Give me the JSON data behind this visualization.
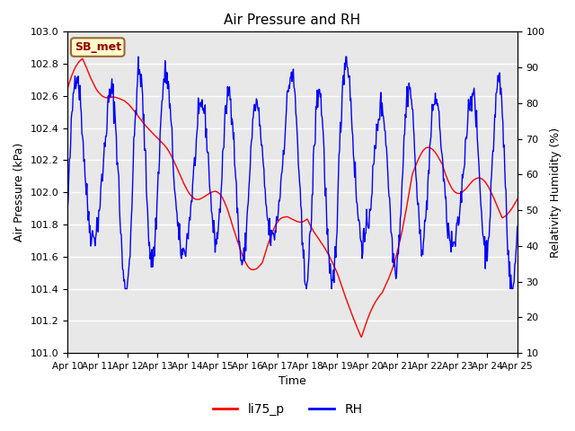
{
  "title": "Air Pressure and RH",
  "xlabel": "Time",
  "ylabel_left": "Air Pressure (kPa)",
  "ylabel_right": "Relativity Humidity (%)",
  "legend_labels": [
    "li75_p",
    "RH"
  ],
  "legend_colors": [
    "red",
    "blue"
  ],
  "ylim_left": [
    101.0,
    103.0
  ],
  "ylim_right": [
    10,
    100
  ],
  "yticks_left": [
    101.0,
    101.2,
    101.4,
    101.6,
    101.8,
    102.0,
    102.2,
    102.4,
    102.6,
    102.8,
    103.0
  ],
  "yticks_right": [
    10,
    20,
    30,
    40,
    50,
    60,
    70,
    80,
    90,
    100
  ],
  "xtick_labels": [
    "Apr 10",
    "Apr 11",
    "Apr 12",
    "Apr 13",
    "Apr 14",
    "Apr 15",
    "Apr 16",
    "Apr 17",
    "Apr 18",
    "Apr 19",
    "Apr 20",
    "Apr 21",
    "Apr 22",
    "Apr 23",
    "Apr 24",
    "Apr 25"
  ],
  "annotation_text": "SB_met",
  "annotation_bg": "#ffffcc",
  "annotation_border": "#996633",
  "annotation_text_color": "#990000",
  "plot_bg": "#e8e8e8",
  "grid_color": "white",
  "n_points": 720
}
